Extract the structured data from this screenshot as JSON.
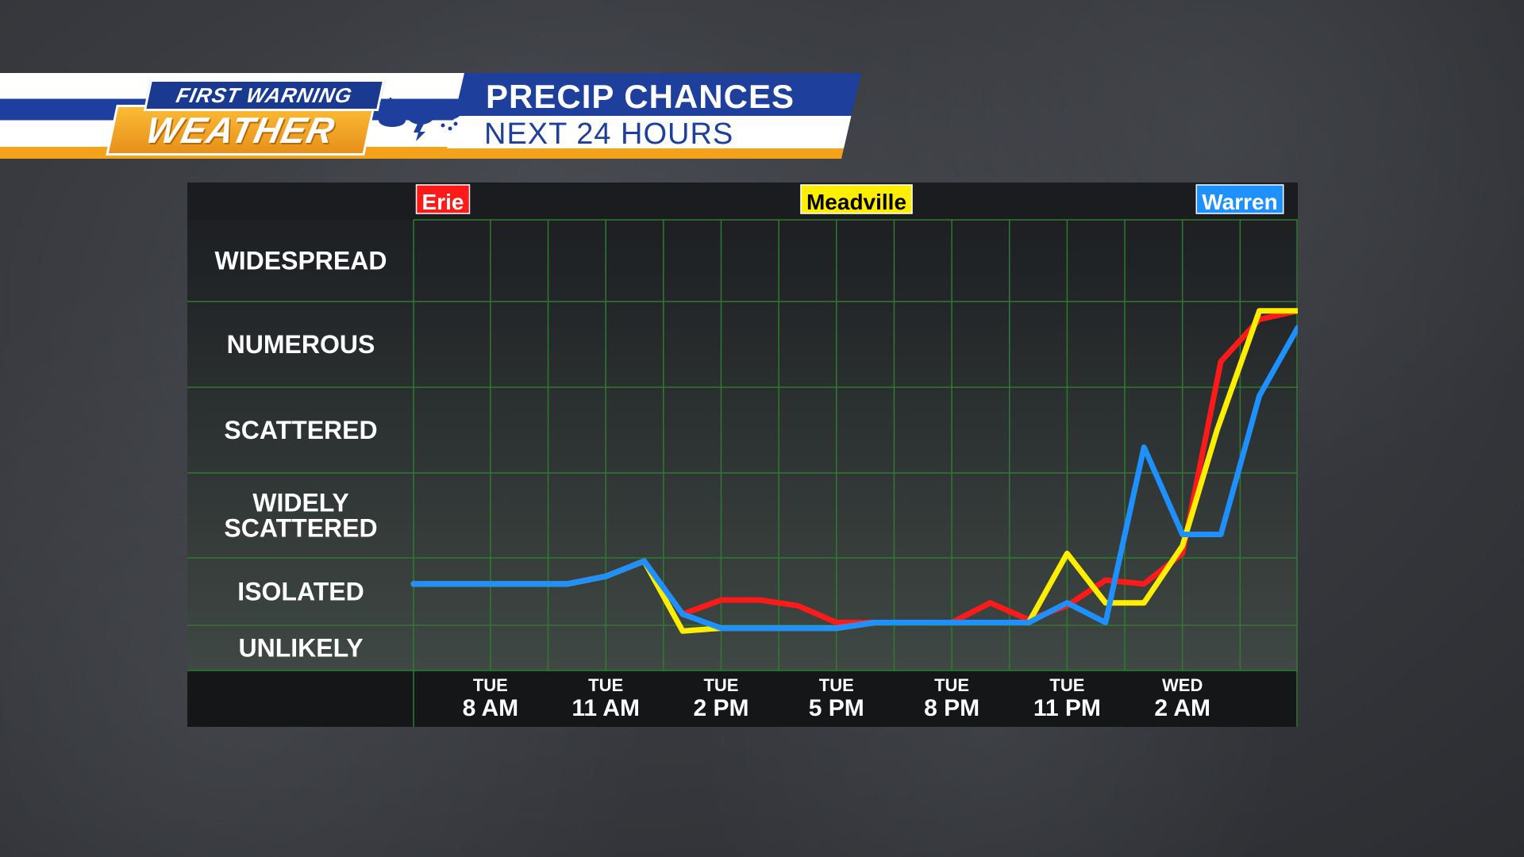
{
  "header": {
    "badge_top": "FIRST WARNING",
    "badge_bottom": "WEATHER",
    "title_line1": "PRECIP CHANCES",
    "title_line2": "NEXT 24 HOURS"
  },
  "icons": [
    "partly-cloudy-icon",
    "storm-cloud-icon",
    "snow-cloud-icon"
  ],
  "colors": {
    "erie": "#ff1a1a",
    "meadville": "#ffee00",
    "warren": "#1e90ff",
    "banner_blue": "#1f3f9d",
    "banner_orange": "#f4a21a"
  },
  "chart_data": {
    "type": "line",
    "title": "",
    "categories_y": [
      "UNLIKELY",
      "ISOLATED",
      "WIDELY SCATTERED",
      "SCATTERED",
      "NUMEROUS",
      "WIDESPREAD"
    ],
    "y_display_labels": [
      "UNLIKELY",
      "ISOLATED",
      [
        "WIDELY",
        "SCATTERED"
      ],
      "SCATTERED",
      "NUMEROUS",
      "WIDESPREAD"
    ],
    "ylim": [
      0,
      5
    ],
    "x_ticks": [
      {
        "hour": 8,
        "day": "TUE",
        "time": "8 AM"
      },
      {
        "hour": 11,
        "day": "TUE",
        "time": "11 AM"
      },
      {
        "hour": 14,
        "day": "TUE",
        "time": "2 PM"
      },
      {
        "hour": 17,
        "day": "TUE",
        "time": "5 PM"
      },
      {
        "hour": 20,
        "day": "TUE",
        "time": "8 PM"
      },
      {
        "hour": 23,
        "day": "TUE",
        "time": "11 PM"
      },
      {
        "hour": 26,
        "day": "WED",
        "time": "2 AM"
      }
    ],
    "xlim": [
      6,
      29
    ],
    "legend_placement": "top",
    "grid": true,
    "series": [
      {
        "name": "Erie",
        "color": "#ff1a1a",
        "legend_pos": "left",
        "points": [
          [
            6,
            1.1
          ],
          [
            7,
            1.1
          ],
          [
            8,
            1.1
          ],
          [
            9,
            1.1
          ],
          [
            10,
            1.1
          ],
          [
            11,
            1.2
          ],
          [
            12,
            1.4
          ],
          [
            13,
            0.6
          ],
          [
            14,
            0.85
          ],
          [
            15,
            0.85
          ],
          [
            16,
            0.75
          ],
          [
            17,
            0.45
          ],
          [
            18,
            0.45
          ],
          [
            19,
            0.45
          ],
          [
            20,
            0.45
          ],
          [
            21,
            0.8
          ],
          [
            22,
            0.5
          ],
          [
            23,
            0.75
          ],
          [
            24,
            1.15
          ],
          [
            25,
            1.1
          ],
          [
            26,
            1.5
          ],
          [
            27,
            3.8
          ],
          [
            28,
            4.3
          ],
          [
            29,
            4.4
          ]
        ]
      },
      {
        "name": "Meadville",
        "color": "#ffee00",
        "legend_pos": "center",
        "points": [
          [
            6,
            1.1
          ],
          [
            7,
            1.1
          ],
          [
            8,
            1.1
          ],
          [
            9,
            1.1
          ],
          [
            10,
            1.1
          ],
          [
            11,
            1.2
          ],
          [
            12,
            1.4
          ],
          [
            13,
            0.3
          ],
          [
            14,
            0.35
          ],
          [
            15,
            0.35
          ],
          [
            16,
            0.35
          ],
          [
            17,
            0.35
          ],
          [
            18,
            0.45
          ],
          [
            19,
            0.45
          ],
          [
            20,
            0.45
          ],
          [
            21,
            0.45
          ],
          [
            22,
            0.45
          ],
          [
            23,
            1.5
          ],
          [
            24,
            0.8
          ],
          [
            25,
            0.8
          ],
          [
            26,
            1.6
          ],
          [
            26.9,
            3.0
          ],
          [
            28,
            4.4
          ],
          [
            29,
            4.4
          ]
        ]
      },
      {
        "name": "Warren",
        "color": "#1e90ff",
        "legend_pos": "right",
        "points": [
          [
            6,
            1.1
          ],
          [
            7,
            1.1
          ],
          [
            8,
            1.1
          ],
          [
            9,
            1.1
          ],
          [
            10,
            1.1
          ],
          [
            11,
            1.2
          ],
          [
            12,
            1.4
          ],
          [
            13,
            0.6
          ],
          [
            14,
            0.35
          ],
          [
            15,
            0.35
          ],
          [
            16,
            0.35
          ],
          [
            17,
            0.35
          ],
          [
            18,
            0.45
          ],
          [
            19,
            0.45
          ],
          [
            20,
            0.45
          ],
          [
            21,
            0.45
          ],
          [
            22,
            0.45
          ],
          [
            23,
            0.8
          ],
          [
            24,
            0.45
          ],
          [
            25,
            2.8
          ],
          [
            26,
            1.75
          ],
          [
            27,
            1.75
          ],
          [
            28,
            3.4
          ],
          [
            29,
            4.2
          ]
        ]
      }
    ]
  }
}
